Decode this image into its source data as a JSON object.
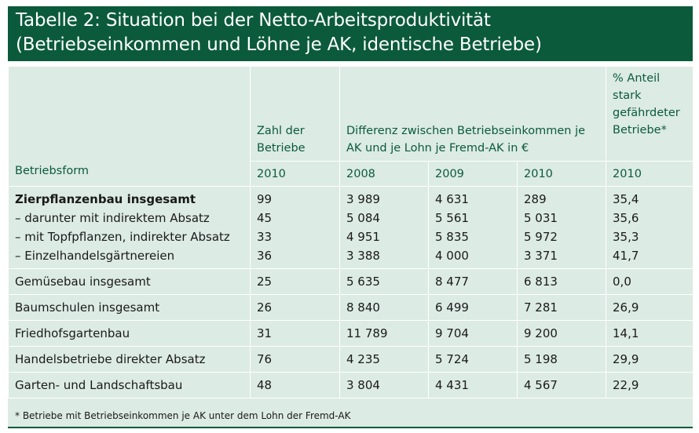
{
  "title": {
    "line1": "Tabelle 2: Situation bei der Netto-Arbeitsproduktivität",
    "line2": "(Betriebseinkommen und Löhne je AK, identische Betriebe)"
  },
  "header": {
    "betriebsform": "Betriebsform",
    "zahl_der_betriebe": "Zahl der Betriebe",
    "differenz": "Differenz zwischen Betriebseinkom­men je AK und je Lohn je Fremd-AK in €",
    "anteil": "% Anteil stark gefährde­ter Betriebe*",
    "years": {
      "zahl": "2010",
      "d2008": "2008",
      "d2009": "2009",
      "d2010": "2010",
      "anteil": "2010"
    }
  },
  "rows": [
    {
      "label": "Zierpflanzenbau insgesamt",
      "zahl": "99",
      "d2008": "3 989",
      "d2009": "4 631",
      "d2010": "289",
      "anteil": "35,4"
    },
    {
      "label": "– darunter mit indirektem Absatz",
      "zahl": "45",
      "d2008": "5 084",
      "d2009": "5 561",
      "d2010": "5 031",
      "anteil": "35,6"
    },
    {
      "label": "– mit Topfpflanzen, indirekter Absatz",
      "zahl": "33",
      "d2008": "4 951",
      "d2009": "5 835",
      "d2010": "5 972",
      "anteil": "35,3"
    },
    {
      "label": "– Einzelhandelsgärtnereien",
      "zahl": "36",
      "d2008": "3 388",
      "d2009": "4 000",
      "d2010": "3 371",
      "anteil": "41,7"
    },
    {
      "label": "Gemüsebau insgesamt",
      "zahl": "25",
      "d2008": "5 635",
      "d2009": "8 477",
      "d2010": "6 813",
      "anteil": "0,0"
    },
    {
      "label": "Baumschulen insgesamt",
      "zahl": "26",
      "d2008": "8 840",
      "d2009": "6 499",
      "d2010": "7 281",
      "anteil": "26,9"
    },
    {
      "label": "Friedhofsgartenbau",
      "zahl": "31",
      "d2008": "11 789",
      "d2009": "9 704",
      "d2010": "9 200",
      "anteil": "14,1"
    },
    {
      "label": "Handelsbetriebe direkter Absatz",
      "zahl": "76",
      "d2008": "4 235",
      "d2009": "5 724",
      "d2010": "5 198",
      "anteil": "29,9"
    },
    {
      "label": "Garten- und Landschaftsbau",
      "zahl": "48",
      "d2008": "3 804",
      "d2009": "4 431",
      "d2010": "4 567",
      "anteil": "22,9"
    }
  ],
  "footnote": "* Betriebe mit Betriebseinkommen je AK unter dem Lohn der Fremd-AK"
}
